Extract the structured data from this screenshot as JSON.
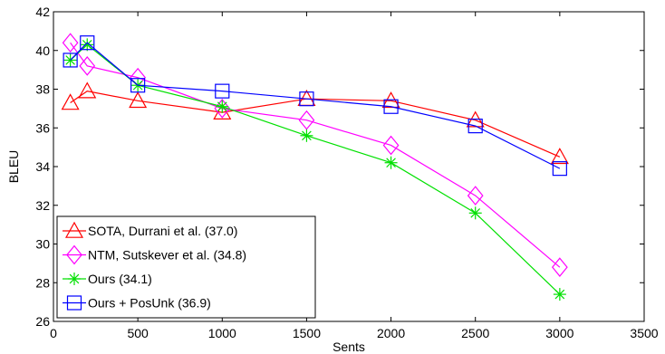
{
  "chart_data": {
    "type": "line",
    "title": "",
    "xlabel": "Sents",
    "ylabel": "BLEU",
    "xlim": [
      0,
      3500
    ],
    "ylim": [
      26,
      42
    ],
    "xticks": [
      0,
      500,
      1000,
      1500,
      2000,
      2500,
      3000,
      3500
    ],
    "yticks": [
      26,
      28,
      30,
      32,
      34,
      36,
      38,
      40,
      42
    ],
    "grid": false,
    "legend_position": "bottom-left",
    "series": [
      {
        "name": "SOTA, Durrani et al. (37.0)",
        "color": "#ff0000",
        "marker": "triangle",
        "x": [
          100,
          200,
          500,
          1000,
          1500,
          2000,
          2500,
          3000
        ],
        "y": [
          37.3,
          37.9,
          37.4,
          36.8,
          37.5,
          37.4,
          36.4,
          34.5
        ]
      },
      {
        "name": "NTM, Sutskever et al. (34.8)",
        "color": "#ff00ff",
        "marker": "diamond",
        "x": [
          100,
          200,
          500,
          1000,
          1500,
          2000,
          2500,
          3000
        ],
        "y": [
          40.4,
          39.2,
          38.6,
          37.0,
          36.4,
          35.1,
          32.5,
          28.8
        ]
      },
      {
        "name": "Ours (34.1)",
        "color": "#00e000",
        "marker": "asterisk",
        "x": [
          100,
          200,
          500,
          1000,
          1500,
          2000,
          2500,
          3000
        ],
        "y": [
          39.5,
          40.3,
          38.2,
          37.1,
          35.6,
          34.2,
          31.6,
          27.4
        ]
      },
      {
        "name": "Ours + PosUnk (36.9)",
        "color": "#0000ff",
        "marker": "square",
        "x": [
          100,
          200,
          500,
          1000,
          1500,
          2000,
          2500,
          3000
        ],
        "y": [
          39.5,
          40.4,
          38.2,
          37.9,
          37.5,
          37.1,
          36.1,
          33.9
        ]
      }
    ]
  }
}
